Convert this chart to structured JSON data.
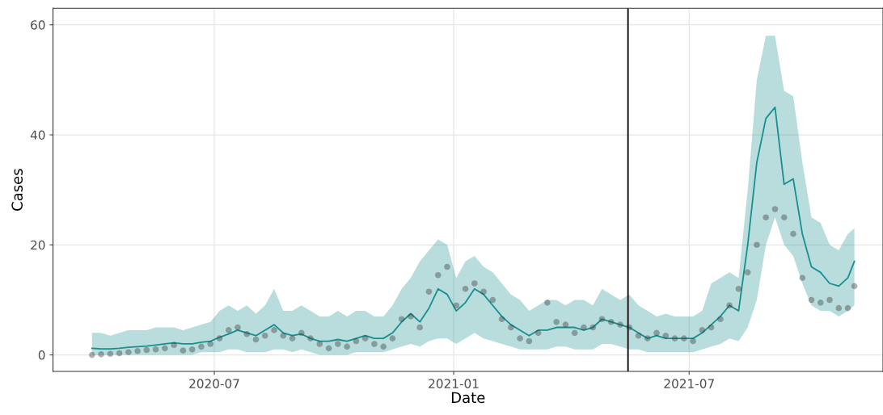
{
  "chart_data": {
    "type": "line",
    "xlabel": "Date",
    "ylabel": "Cases",
    "x": [
      "2020-03-29",
      "2020-04-05",
      "2020-04-12",
      "2020-04-19",
      "2020-04-26",
      "2020-05-03",
      "2020-05-10",
      "2020-05-17",
      "2020-05-24",
      "2020-05-31",
      "2020-06-07",
      "2020-06-14",
      "2020-06-21",
      "2020-06-28",
      "2020-07-05",
      "2020-07-12",
      "2020-07-19",
      "2020-07-26",
      "2020-08-02",
      "2020-08-09",
      "2020-08-16",
      "2020-08-23",
      "2020-08-30",
      "2020-09-06",
      "2020-09-13",
      "2020-09-20",
      "2020-09-27",
      "2020-10-04",
      "2020-10-11",
      "2020-10-18",
      "2020-10-25",
      "2020-11-01",
      "2020-11-08",
      "2020-11-15",
      "2020-11-22",
      "2020-11-29",
      "2020-12-06",
      "2020-12-13",
      "2020-12-20",
      "2020-12-27",
      "2021-01-03",
      "2021-01-10",
      "2021-01-17",
      "2021-01-24",
      "2021-01-31",
      "2021-02-07",
      "2021-02-14",
      "2021-02-21",
      "2021-02-28",
      "2021-03-07",
      "2021-03-14",
      "2021-03-21",
      "2021-03-28",
      "2021-04-04",
      "2021-04-11",
      "2021-04-18",
      "2021-04-25",
      "2021-05-02",
      "2021-05-09",
      "2021-05-16",
      "2021-05-23",
      "2021-05-30",
      "2021-06-06",
      "2021-06-13",
      "2021-06-20",
      "2021-06-27",
      "2021-07-04",
      "2021-07-11",
      "2021-07-18",
      "2021-07-25",
      "2021-08-01",
      "2021-08-08",
      "2021-08-15",
      "2021-08-22",
      "2021-08-29",
      "2021-09-05",
      "2021-09-12",
      "2021-09-19",
      "2021-09-26",
      "2021-10-03",
      "2021-10-10",
      "2021-10-17",
      "2021-10-24",
      "2021-10-31",
      "2021-11-05"
    ],
    "series": [
      {
        "color": "#178f8f",
        "marker": "none",
        "line_style": "solid",
        "values": [
          1.2,
          1.1,
          1.1,
          1.2,
          1.4,
          1.5,
          1.6,
          1.8,
          2.0,
          2.2,
          2.0,
          2.0,
          2.3,
          2.5,
          3.2,
          3.8,
          4.5,
          4.0,
          3.5,
          4.5,
          5.5,
          4.0,
          3.5,
          3.8,
          3.0,
          2.5,
          2.5,
          2.8,
          2.5,
          3.0,
          3.5,
          3.0,
          3.0,
          4.0,
          6.0,
          7.5,
          6.0,
          8.5,
          12.0,
          11.0,
          8.0,
          9.5,
          12.0,
          11.0,
          9.0,
          7.0,
          5.5,
          4.5,
          3.5,
          4.5,
          4.5,
          5.0,
          5.0,
          5.0,
          4.5,
          5.0,
          6.5,
          6.0,
          5.5,
          5.0,
          4.0,
          3.0,
          3.5,
          3.0,
          3.0,
          3.0,
          3.0,
          4.0,
          5.5,
          7.0,
          9.0,
          8.0,
          20.0,
          35.0,
          43.0,
          45.0,
          31.0,
          32.0,
          22.0,
          16.0,
          15.0,
          13.0,
          12.5,
          14.0,
          17.0
        ],
        "lower": [
          0,
          0,
          0,
          0,
          0,
          0,
          0,
          0,
          0,
          0,
          0,
          0,
          0.5,
          0.5,
          0.5,
          1,
          1,
          0.5,
          0.5,
          0.5,
          1,
          1,
          0.5,
          1,
          0.5,
          0,
          0,
          0,
          0,
          0.5,
          0.5,
          0.5,
          0.5,
          1,
          1.5,
          2,
          1.5,
          2.5,
          3,
          3,
          2,
          3,
          4,
          3,
          2.5,
          2,
          1.5,
          1,
          1,
          1,
          1,
          1.5,
          1.5,
          1,
          1,
          1,
          2,
          2,
          1.5,
          1,
          1,
          0.5,
          0.5,
          0.5,
          0.5,
          0.5,
          0.5,
          1,
          1.5,
          2,
          3,
          2.5,
          5,
          10,
          20,
          25,
          20,
          18,
          13,
          9,
          8,
          8,
          7,
          8,
          9
        ],
        "upper": [
          4,
          4,
          3.5,
          4,
          4.5,
          4.5,
          4.5,
          5,
          5,
          5,
          4.5,
          5,
          5.5,
          6,
          8,
          9,
          8,
          9,
          7.5,
          9,
          12,
          8,
          8,
          9,
          8,
          7,
          7,
          8,
          7,
          8,
          8,
          7,
          7,
          9,
          12,
          14,
          17,
          19,
          21,
          20,
          14,
          17,
          18,
          16,
          15,
          13,
          11,
          10,
          8,
          9,
          10,
          10,
          9,
          10,
          10,
          9,
          12,
          11,
          10,
          11,
          9,
          8,
          7,
          7.5,
          7,
          7,
          7,
          8,
          13,
          14,
          15,
          14,
          30,
          50,
          58,
          58,
          48,
          47,
          35,
          25,
          24,
          20,
          19,
          22,
          23
        ]
      },
      {
        "type": "scatter",
        "color": "#3a3a3a",
        "marker": "circle",
        "values": [
          0.0,
          0.1,
          0.2,
          0.3,
          0.5,
          0.7,
          0.9,
          1.0,
          1.2,
          1.8,
          0.8,
          1.0,
          1.5,
          2.0,
          3.0,
          4.5,
          5.0,
          3.8,
          2.8,
          3.5,
          4.5,
          3.5,
          3.0,
          4.0,
          3.0,
          2.0,
          1.2,
          2.0,
          1.5,
          2.5,
          3.0,
          2.0,
          1.5,
          3.0,
          6.5,
          7.0,
          5.0,
          11.5,
          14.5,
          16.0,
          9.0,
          12.0,
          13.0,
          11.5,
          10.0,
          6.5,
          5.0,
          3.0,
          2.5,
          4.0,
          9.5,
          6.0,
          5.5,
          4.0,
          5.0,
          5.0,
          6.5,
          6.0,
          5.5,
          5.0,
          3.5,
          3.0,
          4.0,
          3.5,
          3.0,
          3.0,
          2.5,
          4.5,
          5.0,
          6.5,
          9.0,
          12.0,
          15.0,
          20.0,
          25.0,
          26.5,
          25.0,
          22.0,
          14.0,
          10.0,
          9.5,
          10.0,
          8.5,
          8.5,
          12.5
        ]
      }
    ],
    "xlim": [
      "2020-02-28",
      "2021-11-27"
    ],
    "xticks": [
      {
        "value": "2020-07-01",
        "label": "2020-07"
      },
      {
        "value": "2021-01-01",
        "label": "2021-01"
      },
      {
        "value": "2021-07-01",
        "label": "2021-07"
      }
    ],
    "ylim": [
      -3,
      63
    ],
    "yticks": [
      0,
      20,
      40,
      60
    ],
    "ref_lines": [
      {
        "axis": "x",
        "value": "2021-05-15",
        "color": "#000000",
        "line_style": "solid"
      }
    ],
    "grid": true
  }
}
